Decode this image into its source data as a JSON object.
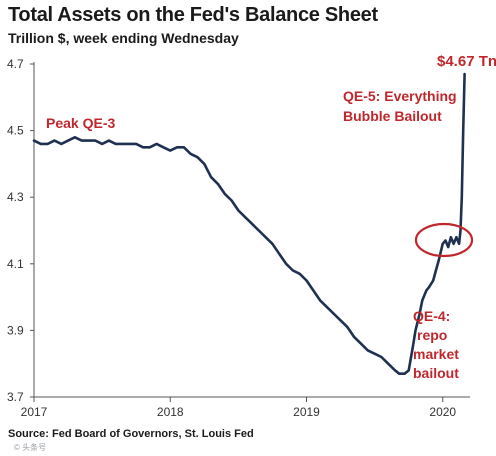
{
  "chart_data": {
    "type": "line",
    "title": "Total Assets on the Fed's Balance Sheet",
    "subtitle": "Trillion $, week ending Wednesday",
    "source": "Source: Fed Board of Governors, St. Louis Fed",
    "watermark": "© 头条号",
    "xlim": [
      2017.0,
      2020.2
    ],
    "ylim": [
      3.7,
      4.7
    ],
    "x_ticks": [
      {
        "value": 2017,
        "label": "2017"
      },
      {
        "value": 2018,
        "label": "2018"
      },
      {
        "value": 2019,
        "label": "2019"
      },
      {
        "value": 2020,
        "label": "2020"
      }
    ],
    "y_ticks": [
      {
        "value": 3.7,
        "label": "3.7"
      },
      {
        "value": 3.9,
        "label": "3.9"
      },
      {
        "value": 4.1,
        "label": "4.1"
      },
      {
        "value": 4.3,
        "label": "4.3"
      },
      {
        "value": 4.5,
        "label": "4.5"
      },
      {
        "value": 4.7,
        "label": "4.7"
      }
    ],
    "grid": false,
    "line_color": "#1f3150",
    "annotation_color": "#c0272d",
    "series": [
      {
        "x": [
          2017.0,
          2017.05,
          2017.1,
          2017.15,
          2017.2,
          2017.25,
          2017.3,
          2017.35,
          2017.4,
          2017.45,
          2017.5,
          2017.55,
          2017.6,
          2017.65,
          2017.7,
          2017.75,
          2017.8,
          2017.85,
          2017.9,
          2017.95,
          2018.0,
          2018.05,
          2018.1,
          2018.15,
          2018.2,
          2018.25,
          2018.3,
          2018.35,
          2018.4,
          2018.45,
          2018.5,
          2018.55,
          2018.6,
          2018.65,
          2018.7,
          2018.75,
          2018.8,
          2018.85,
          2018.9,
          2018.95,
          2019.0,
          2019.05,
          2019.1,
          2019.15,
          2019.2,
          2019.25,
          2019.3,
          2019.35,
          2019.4,
          2019.45,
          2019.5,
          2019.55,
          2019.6,
          2019.65,
          2019.68,
          2019.72,
          2019.75,
          2019.78,
          2019.8,
          2019.83,
          2019.85,
          2019.88,
          2019.9,
          2019.93,
          2019.95,
          2019.97,
          2020.0,
          2020.02,
          2020.04,
          2020.06,
          2020.08,
          2020.1,
          2020.12,
          2020.13,
          2020.14,
          2020.15,
          2020.16
        ],
        "y": [
          4.47,
          4.46,
          4.46,
          4.47,
          4.46,
          4.47,
          4.48,
          4.47,
          4.47,
          4.47,
          4.46,
          4.47,
          4.46,
          4.46,
          4.46,
          4.46,
          4.45,
          4.45,
          4.46,
          4.45,
          4.44,
          4.45,
          4.45,
          4.43,
          4.42,
          4.4,
          4.36,
          4.34,
          4.31,
          4.29,
          4.26,
          4.24,
          4.22,
          4.2,
          4.18,
          4.16,
          4.13,
          4.1,
          4.08,
          4.07,
          4.05,
          4.02,
          3.99,
          3.97,
          3.95,
          3.93,
          3.91,
          3.88,
          3.86,
          3.84,
          3.83,
          3.82,
          3.8,
          3.78,
          3.77,
          3.77,
          3.78,
          3.85,
          3.9,
          3.95,
          3.99,
          4.02,
          4.03,
          4.05,
          4.08,
          4.11,
          4.16,
          4.17,
          4.15,
          4.18,
          4.16,
          4.18,
          4.16,
          4.2,
          4.3,
          4.5,
          4.67
        ]
      }
    ],
    "annotations": [
      {
        "text": "Peak QE-3"
      },
      {
        "text": "$4.67 Tn"
      },
      {
        "text": "QE-5: Everything"
      },
      {
        "text": "Bubble Bailout"
      },
      {
        "text": "QE-4:"
      },
      {
        "text": "repo"
      },
      {
        "text": "market"
      },
      {
        "text": "bailout"
      }
    ]
  }
}
